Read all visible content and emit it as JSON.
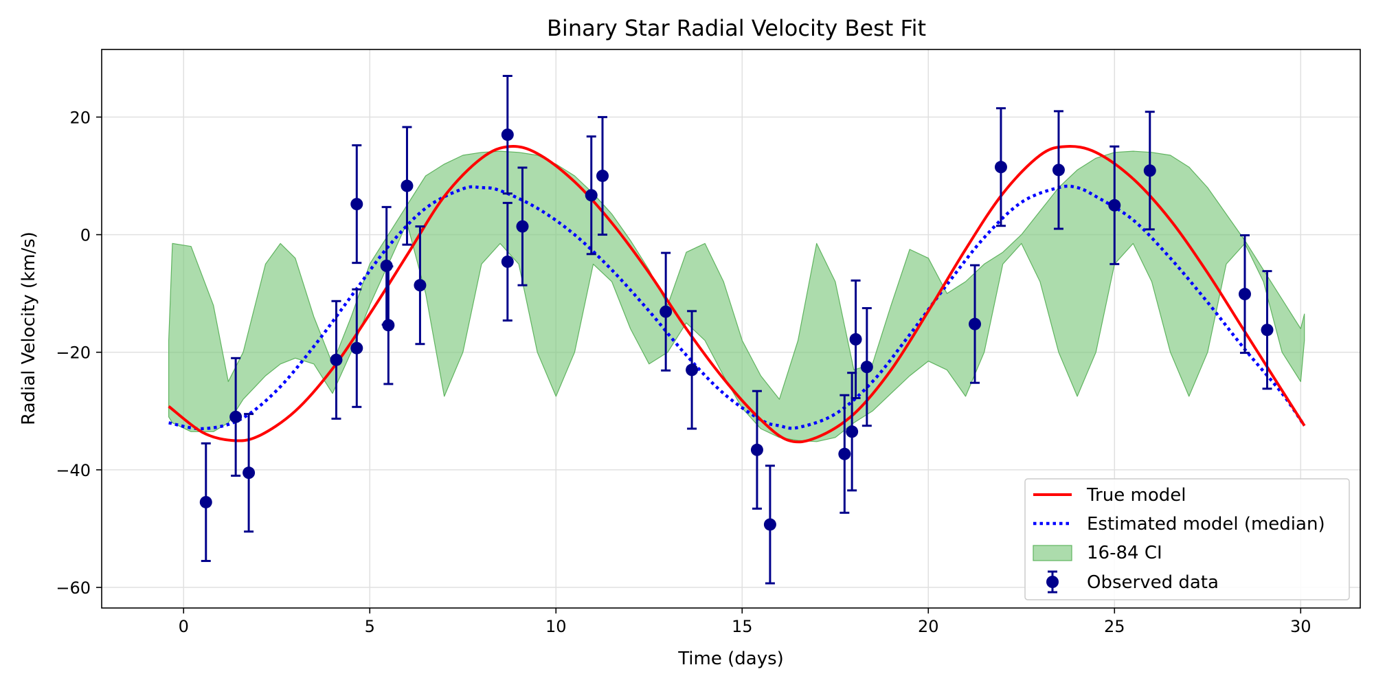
{
  "chart_data": {
    "type": "line",
    "title": "Binary Star Radial Velocity Best Fit",
    "xlabel": "Time (days)",
    "ylabel": "Radial Velocity (km/s)",
    "xlim": [
      -2.2,
      31.6
    ],
    "ylim": [
      -63.5,
      31.5
    ],
    "xticks": [
      0,
      5,
      10,
      15,
      20,
      25,
      30
    ],
    "yticks": [
      -60,
      -40,
      -20,
      0,
      20
    ],
    "xtick_labels": [
      "0",
      "5",
      "10",
      "15",
      "20",
      "25",
      "30"
    ],
    "ytick_labels": [
      "−60",
      "−40",
      "−20",
      "0",
      "20"
    ],
    "grid": true,
    "legend_position": "lower-right",
    "colors": {
      "true_model": "#ff0000",
      "estimated_model": "#0000ff",
      "ci_fill": "#7fc97f",
      "observed": "#00008b",
      "grid": "#e0e0e0"
    },
    "series": [
      {
        "name": "True model",
        "style": "solid",
        "x": [
          -0.4,
          0.5,
          1.3,
          2.0,
          3.0,
          4.0,
          5.0,
          6.0,
          7.0,
          8.0,
          8.75,
          9.5,
          10.5,
          11.5,
          12.5,
          13.5,
          14.5,
          15.5,
          16.25,
          17.0,
          18.0,
          19.0,
          20.0,
          21.0,
          22.0,
          23.0,
          23.7,
          24.5,
          25.5,
          26.5,
          27.5,
          28.5,
          29.5,
          30.1
        ],
        "y": [
          -29.2,
          -33.6,
          -35.0,
          -34.3,
          -30.0,
          -22.8,
          -13.5,
          -3.5,
          6.5,
          13.0,
          15.0,
          13.8,
          9.0,
          2.0,
          -6.5,
          -16.0,
          -24.5,
          -31.5,
          -35.0,
          -34.5,
          -30.5,
          -23.0,
          -13.0,
          -2.5,
          7.0,
          13.5,
          15.0,
          14.0,
          9.5,
          2.5,
          -6.5,
          -16.5,
          -26.5,
          -32.5
        ]
      },
      {
        "name": "Estimated model (median)",
        "style": "dotted",
        "x": [
          -0.4,
          0.5,
          1.5,
          2.5,
          3.5,
          4.5,
          5.5,
          6.5,
          7.5,
          8.0,
          8.5,
          9.5,
          10.5,
          11.5,
          12.5,
          13.5,
          14.5,
          15.5,
          16.0,
          16.5,
          17.5,
          18.5,
          19.5,
          20.5,
          21.5,
          22.5,
          23.5,
          24.0,
          24.5,
          25.5,
          26.5,
          27.5,
          28.5,
          29.5,
          30.1
        ],
        "y": [
          -32.0,
          -33.0,
          -31.5,
          -26.5,
          -19.0,
          -10.5,
          -2.0,
          4.5,
          7.8,
          8.0,
          7.5,
          4.5,
          0.0,
          -6.0,
          -13.0,
          -20.5,
          -27.0,
          -31.5,
          -32.5,
          -32.8,
          -30.5,
          -25.0,
          -17.0,
          -8.5,
          -0.5,
          5.5,
          8.0,
          8.0,
          6.5,
          2.5,
          -4.0,
          -11.5,
          -19.5,
          -27.0,
          -32.5
        ]
      }
    ],
    "ci_band": {
      "name": "16-84 CI",
      "x": [
        -0.4,
        -0.3,
        0.2,
        0.8,
        1.2,
        1.6,
        2.2,
        2.6,
        3.0,
        3.5,
        4.0,
        4.5,
        5.0,
        5.5,
        6.0,
        6.5,
        7.0,
        7.5,
        8.0,
        8.5,
        9.0,
        9.5,
        10.0,
        10.5,
        11.0,
        11.5,
        12.0,
        12.5,
        13.0,
        13.5,
        14.0,
        14.5,
        15.0,
        15.5,
        16.0,
        16.5,
        17.0,
        17.5,
        18.0,
        18.5,
        19.0,
        19.5,
        20.0,
        20.5,
        21.0,
        21.5,
        22.0,
        22.5,
        23.0,
        23.5,
        24.0,
        24.5,
        25.0,
        25.5,
        26.0,
        26.5,
        27.0,
        27.5,
        28.0,
        28.5,
        29.0,
        29.5,
        30.0,
        30.1
      ],
      "upper": [
        -18.0,
        -1.5,
        -2.0,
        -12.0,
        -25.0,
        -20.0,
        -5.0,
        -1.5,
        -4.0,
        -14.0,
        -22.0,
        -14.0,
        -5.0,
        0.0,
        5.0,
        10.0,
        12.0,
        13.5,
        14.0,
        14.2,
        14.0,
        13.5,
        12.0,
        10.0,
        7.0,
        3.5,
        -1.0,
        -6.0,
        -12.0,
        -3.0,
        -1.5,
        -8.0,
        -18.0,
        -24.0,
        -28.0,
        -18.0,
        -1.5,
        -8.0,
        -23.0,
        -22.0,
        -12.0,
        -2.5,
        -4.0,
        -10.0,
        -8.0,
        -5.0,
        -3.0,
        0.0,
        4.0,
        8.0,
        11.0,
        13.0,
        14.0,
        14.2,
        14.0,
        13.5,
        11.5,
        8.0,
        3.5,
        -1.0,
        -6.0,
        -11.0,
        -16.0,
        -13.5
      ],
      "lower": [
        -31.0,
        -32.0,
        -33.5,
        -33.5,
        -32.0,
        -28.0,
        -24.0,
        -22.0,
        -21.0,
        -22.0,
        -27.0,
        -20.0,
        -12.0,
        -5.0,
        2.0,
        -10.0,
        -27.5,
        -20.0,
        -5.0,
        -1.5,
        -5.0,
        -20.0,
        -27.5,
        -20.0,
        -5.0,
        -8.0,
        -16.0,
        -22.0,
        -20.0,
        -15.0,
        -18.0,
        -24.0,
        -29.5,
        -33.0,
        -34.5,
        -35.0,
        -35.2,
        -34.5,
        -32.0,
        -30.0,
        -27.0,
        -24.0,
        -21.5,
        -23.0,
        -27.5,
        -20.0,
        -5.0,
        -1.5,
        -8.0,
        -20.0,
        -27.5,
        -20.0,
        -5.0,
        -1.5,
        -8.0,
        -20.0,
        -27.5,
        -20.0,
        -5.0,
        -1.5,
        -8.0,
        -20.0,
        -25.0,
        -18.0
      ]
    },
    "observed": {
      "name": "Observed data",
      "error": 10,
      "points": [
        {
          "x": 0.6,
          "y": -45.5
        },
        {
          "x": 1.4,
          "y": -31.0
        },
        {
          "x": 1.75,
          "y": -40.5
        },
        {
          "x": 4.1,
          "y": -21.3
        },
        {
          "x": 4.65,
          "y": 5.2
        },
        {
          "x": 4.65,
          "y": -19.3
        },
        {
          "x": 5.45,
          "y": -5.3
        },
        {
          "x": 5.5,
          "y": -15.4
        },
        {
          "x": 6.0,
          "y": 8.3
        },
        {
          "x": 6.35,
          "y": -8.6
        },
        {
          "x": 8.7,
          "y": 17.0
        },
        {
          "x": 8.7,
          "y": -4.6
        },
        {
          "x": 9.1,
          "y": 1.4
        },
        {
          "x": 10.95,
          "y": 6.7
        },
        {
          "x": 11.25,
          "y": 10.0
        },
        {
          "x": 12.95,
          "y": -13.1
        },
        {
          "x": 13.65,
          "y": -23.0
        },
        {
          "x": 15.4,
          "y": -36.6
        },
        {
          "x": 15.75,
          "y": -49.3
        },
        {
          "x": 17.75,
          "y": -37.3
        },
        {
          "x": 17.95,
          "y": -33.5
        },
        {
          "x": 18.05,
          "y": -17.8
        },
        {
          "x": 18.35,
          "y": -22.5
        },
        {
          "x": 21.25,
          "y": -15.2
        },
        {
          "x": 21.95,
          "y": 11.5
        },
        {
          "x": 23.5,
          "y": 11.0
        },
        {
          "x": 25.0,
          "y": 5.0
        },
        {
          "x": 25.95,
          "y": 10.9
        },
        {
          "x": 28.5,
          "y": -10.1
        },
        {
          "x": 29.1,
          "y": -16.2
        }
      ]
    },
    "legend": [
      "True model",
      "Estimated model (median)",
      "16-84 CI",
      "Observed data"
    ]
  }
}
